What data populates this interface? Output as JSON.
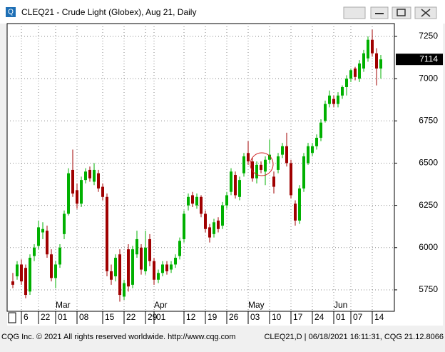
{
  "chart_data": {
    "type": "candlestick",
    "title": "CLEQ21 - Crude Light (Globex), Aug 21, Daily",
    "categories": [
      null,
      null,
      "6",
      null,
      null,
      null,
      "22",
      null,
      null,
      null,
      "01",
      null,
      null,
      null,
      null,
      "08",
      null,
      null,
      null,
      null,
      null,
      "15",
      null,
      null,
      null,
      null,
      "22",
      null,
      null,
      null,
      null,
      "29",
      null,
      "01",
      null,
      null,
      null,
      null,
      null,
      null,
      "12",
      null,
      null,
      null,
      null,
      "19",
      null,
      null,
      null,
      null,
      "26",
      null,
      null,
      null,
      null,
      "03",
      null,
      null,
      null,
      null,
      "10",
      null,
      null,
      null,
      null,
      "17",
      null,
      null,
      null,
      null,
      "24",
      null,
      null,
      null,
      null,
      "01",
      null,
      null,
      null,
      "07",
      null,
      null,
      null,
      null,
      "14",
      null,
      null
    ],
    "months": [
      null,
      null,
      null,
      null,
      null,
      null,
      null,
      null,
      null,
      null,
      "Mar",
      null,
      null,
      null,
      null,
      null,
      null,
      null,
      null,
      null,
      null,
      null,
      null,
      null,
      null,
      null,
      null,
      null,
      null,
      null,
      null,
      null,
      null,
      "Apr",
      null,
      null,
      null,
      null,
      null,
      null,
      null,
      null,
      null,
      null,
      null,
      null,
      null,
      null,
      null,
      null,
      null,
      null,
      null,
      null,
      null,
      "May",
      null,
      null,
      null,
      null,
      null,
      null,
      null,
      null,
      null,
      null,
      null,
      null,
      null,
      null,
      null,
      null,
      null,
      null,
      null,
      "Jun",
      null,
      null,
      null,
      null,
      null,
      null,
      null,
      null,
      null,
      null,
      null
    ],
    "ohlc": [
      [
        5800,
        5850,
        5760,
        5780
      ],
      [
        5830,
        5920,
        5810,
        5900
      ],
      [
        5900,
        5930,
        5780,
        5800
      ],
      [
        5880,
        5900,
        5700,
        5720
      ],
      [
        5740,
        5960,
        5720,
        5940
      ],
      [
        5950,
        6020,
        5920,
        6000
      ],
      [
        6010,
        6160,
        5990,
        6120
      ],
      [
        6090,
        6150,
        6050,
        6110
      ],
      [
        6100,
        6130,
        5940,
        5960
      ],
      [
        5960,
        5990,
        5800,
        5820
      ],
      [
        5820,
        5920,
        5760,
        5900
      ],
      [
        5900,
        6020,
        5880,
        6000
      ],
      [
        6080,
        6220,
        6050,
        6200
      ],
      [
        6200,
        6470,
        6190,
        6440
      ],
      [
        6460,
        6580,
        6300,
        6320
      ],
      [
        6340,
        6380,
        6230,
        6260
      ],
      [
        6260,
        6420,
        6240,
        6400
      ],
      [
        6400,
        6470,
        6380,
        6450
      ],
      [
        6460,
        6480,
        6390,
        6410
      ],
      [
        6390,
        6500,
        6370,
        6460
      ],
      [
        6440,
        6460,
        6330,
        6350
      ],
      [
        6360,
        6380,
        6280,
        6300
      ],
      [
        6300,
        6320,
        5830,
        5860
      ],
      [
        5860,
        5900,
        5780,
        5810
      ],
      [
        5830,
        5960,
        5800,
        5940
      ],
      [
        5960,
        5990,
        5680,
        5720
      ],
      [
        5710,
        5810,
        5690,
        5790
      ],
      [
        5990,
        6020,
        5740,
        5770
      ],
      [
        5780,
        6010,
        5760,
        5990
      ],
      [
        5960,
        6100,
        5940,
        6050
      ],
      [
        6000,
        6020,
        5840,
        5870
      ],
      [
        5860,
        6100,
        5840,
        6000
      ],
      [
        6050,
        6080,
        5890,
        5920
      ],
      [
        5920,
        5940,
        5780,
        5810
      ],
      [
        5810,
        5870,
        5790,
        5850
      ],
      [
        5850,
        5920,
        5830,
        5900
      ],
      [
        5900,
        5920,
        5840,
        5860
      ],
      [
        5870,
        5920,
        5850,
        5900
      ],
      [
        5900,
        5960,
        5880,
        5940
      ],
      [
        5950,
        6060,
        5930,
        6040
      ],
      [
        6050,
        6220,
        6030,
        6200
      ],
      [
        6250,
        6320,
        6220,
        6300
      ],
      [
        6310,
        6330,
        6240,
        6260
      ],
      [
        6250,
        6320,
        6230,
        6300
      ],
      [
        6300,
        6310,
        6180,
        6200
      ],
      [
        6200,
        6220,
        6090,
        6110
      ],
      [
        6120,
        6140,
        6030,
        6060
      ],
      [
        6080,
        6170,
        6060,
        6150
      ],
      [
        6160,
        6180,
        6090,
        6110
      ],
      [
        6130,
        6270,
        6110,
        6250
      ],
      [
        6250,
        6330,
        6230,
        6310
      ],
      [
        6330,
        6470,
        6310,
        6450
      ],
      [
        6430,
        6450,
        6290,
        6310
      ],
      [
        6300,
        6420,
        6280,
        6400
      ],
      [
        6440,
        6560,
        6420,
        6540
      ],
      [
        6560,
        6630,
        6490,
        6510
      ],
      [
        6510,
        6530,
        6390,
        6410
      ],
      [
        6410,
        6510,
        6380,
        6490
      ],
      [
        6490,
        6510,
        6440,
        6460
      ],
      [
        6450,
        6540,
        6370,
        6520
      ],
      [
        6520,
        6640,
        6500,
        6550
      ],
      [
        6420,
        6450,
        6320,
        6360
      ],
      [
        6460,
        6560,
        6440,
        6540
      ],
      [
        6550,
        6620,
        6530,
        6600
      ],
      [
        6600,
        6680,
        6480,
        6500
      ],
      [
        6500,
        6520,
        6290,
        6310
      ],
      [
        6260,
        6280,
        6130,
        6160
      ],
      [
        6160,
        6370,
        6140,
        6350
      ],
      [
        6350,
        6560,
        6330,
        6540
      ],
      [
        6500,
        6620,
        6490,
        6600
      ],
      [
        6560,
        6620,
        6540,
        6600
      ],
      [
        6600,
        6670,
        6580,
        6650
      ],
      [
        6650,
        6760,
        6630,
        6740
      ],
      [
        6750,
        6870,
        6740,
        6850
      ],
      [
        6850,
        6930,
        6830,
        6900
      ],
      [
        6880,
        6900,
        6830,
        6850
      ],
      [
        6850,
        6920,
        6830,
        6900
      ],
      [
        6900,
        6960,
        6880,
        6950
      ],
      [
        6950,
        7020,
        6900,
        7000
      ],
      [
        7000,
        7060,
        6980,
        7050
      ],
      [
        7060,
        7070,
        6990,
        7010
      ],
      [
        7000,
        7110,
        6980,
        7090
      ],
      [
        7060,
        7170,
        7040,
        7150
      ],
      [
        7120,
        7250,
        7100,
        7230
      ],
      [
        7230,
        7290,
        7130,
        7150
      ],
      [
        7150,
        7180,
        6960,
        7060
      ],
      [
        7060,
        7140,
        7000,
        7114
      ]
    ],
    "up_color": "#00b000",
    "down_color": "#a00000",
    "ylim": [
      5623,
      7326
    ],
    "yticks": [
      5750,
      6000,
      6250,
      6500,
      6750,
      7000,
      7250
    ],
    "last_price": 7114,
    "grid": true
  },
  "footer": {
    "left": "CQG Inc. © 2021 All rights reserved worldwide. http://www.cqg.com",
    "right": "CLEQ21,D | 06/18/2021 16:11:31, CQG 21.12.8066"
  }
}
